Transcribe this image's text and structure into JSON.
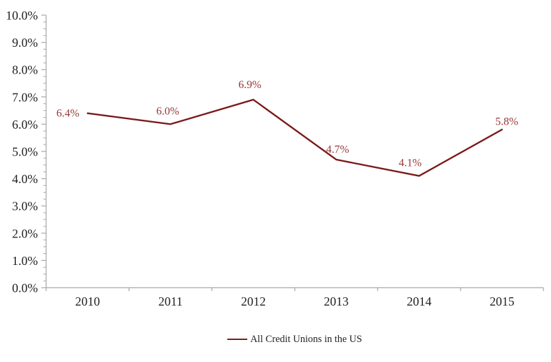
{
  "chart_data": {
    "type": "line",
    "title": "",
    "xlabel": "",
    "ylabel": "",
    "categories": [
      "2010",
      "2011",
      "2012",
      "2013",
      "2014",
      "2015"
    ],
    "series": [
      {
        "name": "All Credit Unions in the US",
        "values": [
          6.4,
          6.0,
          6.9,
          4.7,
          4.1,
          5.8
        ]
      }
    ],
    "point_labels": [
      "6.4%",
      "6.0%",
      "6.9%",
      "4.7%",
      "4.1%",
      "5.8%"
    ],
    "y_tick_labels": [
      "10.0%",
      "9.0%",
      "8.0%",
      "7.0%",
      "6.0%",
      "5.0%",
      "4.0%",
      "3.0%",
      "2.0%",
      "1.0%",
      "0.0%"
    ],
    "ylim": [
      0,
      10
    ],
    "y_major_step": 1,
    "y_minor_step": 0.25,
    "grid": false,
    "legend_position": "bottom-center",
    "colors": {
      "series_line": "#7B1A1A",
      "data_label": "#963735",
      "axis": "#A6A6A6",
      "tick_label": "#1F1F1F",
      "legend_text": "#1F1F1F",
      "background": "#FFFFFF"
    }
  }
}
